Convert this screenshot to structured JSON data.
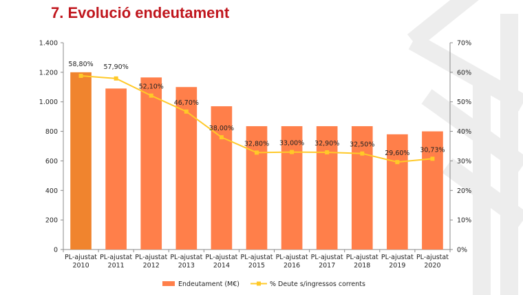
{
  "slide": {
    "title": "7. Evolució endeutament"
  },
  "colors": {
    "title": "#c0161d",
    "bar": "#ff7f4a",
    "bar_first": "#f0842e",
    "line": "#ffc928",
    "watermark": "#ececec"
  },
  "chart_data": {
    "type": "bar",
    "categories": [
      [
        "PL-ajustat",
        "2010"
      ],
      [
        "PL-ajustat",
        "2011"
      ],
      [
        "PL-ajustat",
        "2012"
      ],
      [
        "PL-ajustat",
        "2013"
      ],
      [
        "PL-ajustat",
        "2014"
      ],
      [
        "PL-ajustat",
        "2015"
      ],
      [
        "PL-ajustat",
        "2016"
      ],
      [
        "PL-ajustat",
        "2017"
      ],
      [
        "PL-ajustat",
        "2018"
      ],
      [
        "PL-ajustat",
        "2019"
      ],
      [
        "PL-ajustat",
        "2020"
      ]
    ],
    "series": [
      {
        "name": "Endeutament (M€)",
        "type": "bar",
        "axis": "left",
        "values": [
          1200,
          1090,
          1165,
          1100,
          970,
          835,
          835,
          835,
          835,
          780,
          800
        ]
      },
      {
        "name": "% Deute s/ingressos corrents",
        "type": "line",
        "axis": "right",
        "values": [
          58.8,
          57.9,
          52.1,
          46.7,
          38.0,
          32.8,
          33.0,
          32.9,
          32.5,
          29.6,
          30.73
        ],
        "labels": [
          "58,80%",
          "57,90%",
          "52,10%",
          "46,70%",
          "38,00%",
          "32,80%",
          "33,00%",
          "32,90%",
          "32,50%",
          "29,60%",
          "30,73%"
        ]
      }
    ],
    "y_left": {
      "min": 0,
      "max": 1400,
      "ticks": [
        0,
        200,
        400,
        600,
        800,
        1000,
        1200,
        1400
      ],
      "tick_labels": [
        "0",
        "200",
        "400",
        "600",
        "800",
        "1.000",
        "1.200",
        "1.400"
      ]
    },
    "y_right": {
      "min": 0,
      "max": 70,
      "ticks": [
        0,
        10,
        20,
        30,
        40,
        50,
        60,
        70
      ],
      "tick_labels": [
        "0%",
        "10%",
        "20%",
        "30%",
        "40%",
        "50%",
        "60%",
        "70%"
      ]
    },
    "grid": false,
    "legend_position": "bottom"
  }
}
